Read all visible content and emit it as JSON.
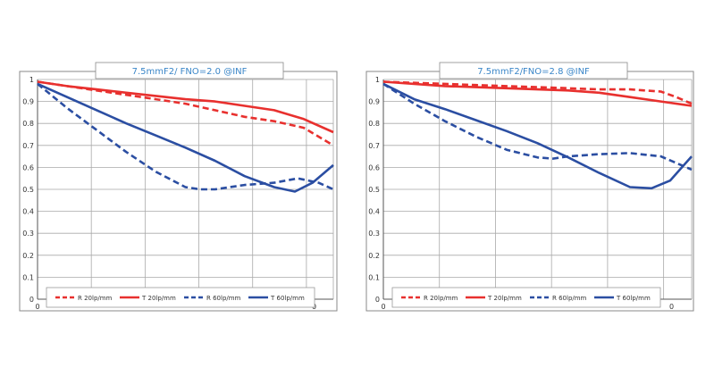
{
  "chart_data": [
    {
      "type": "line",
      "title": "7.5mmF2/ FNO=2.0  @INF",
      "xlabel": "",
      "ylabel": "",
      "ylim": [
        0,
        1
      ],
      "yticks": [
        "0",
        "0.1",
        "0.2",
        "0.3",
        "0.4",
        "0.5",
        "0.6",
        "0.7",
        "0.8",
        "0.9",
        "1"
      ],
      "xticks": [
        "0",
        "0"
      ],
      "grid": true,
      "legend_position": "bottom",
      "series": [
        {
          "name": "R 20lp/mm",
          "color": "#e8302e",
          "dash": true,
          "x": [
            0,
            0.1,
            0.2,
            0.3,
            0.4,
            0.5,
            0.6,
            0.7,
            0.8,
            0.9,
            1.0
          ],
          "y": [
            0.99,
            0.97,
            0.95,
            0.93,
            0.91,
            0.89,
            0.86,
            0.83,
            0.81,
            0.78,
            0.7
          ]
        },
        {
          "name": "T 20lp/mm",
          "color": "#e8302e",
          "dash": false,
          "x": [
            0,
            0.1,
            0.2,
            0.3,
            0.4,
            0.5,
            0.6,
            0.7,
            0.8,
            0.9,
            1.0
          ],
          "y": [
            0.99,
            0.97,
            0.955,
            0.94,
            0.925,
            0.91,
            0.9,
            0.88,
            0.86,
            0.82,
            0.76
          ]
        },
        {
          "name": "R 60lp/mm",
          "color": "#2b4ea2",
          "dash": true,
          "x": [
            0,
            0.1,
            0.2,
            0.3,
            0.4,
            0.5,
            0.55,
            0.6,
            0.7,
            0.8,
            0.88,
            0.95,
            1.0
          ],
          "y": [
            0.98,
            0.87,
            0.77,
            0.67,
            0.58,
            0.51,
            0.5,
            0.5,
            0.52,
            0.53,
            0.55,
            0.53,
            0.5
          ]
        },
        {
          "name": "T 60lp/mm",
          "color": "#2b4ea2",
          "dash": false,
          "x": [
            0,
            0.1,
            0.2,
            0.3,
            0.4,
            0.5,
            0.6,
            0.7,
            0.8,
            0.87,
            0.93,
            1.0
          ],
          "y": [
            0.98,
            0.92,
            0.86,
            0.8,
            0.745,
            0.69,
            0.63,
            0.56,
            0.51,
            0.49,
            0.53,
            0.61
          ]
        }
      ]
    },
    {
      "type": "line",
      "title": "7.5mmF2/FNO=2.8  @INF",
      "xlabel": "",
      "ylabel": "",
      "ylim": [
        0,
        1
      ],
      "yticks": [
        "0",
        "0.1",
        "0.2",
        "0.3",
        "0.4",
        "0.5",
        "0.6",
        "0.7",
        "0.8",
        "0.9",
        "1"
      ],
      "xticks": [
        "0",
        "0"
      ],
      "grid": true,
      "legend_position": "bottom",
      "series": [
        {
          "name": "R 20lp/mm",
          "color": "#e8302e",
          "dash": true,
          "x": [
            0,
            0.1,
            0.2,
            0.3,
            0.4,
            0.5,
            0.6,
            0.7,
            0.8,
            0.9,
            0.95,
            1.0
          ],
          "y": [
            0.99,
            0.985,
            0.98,
            0.975,
            0.97,
            0.965,
            0.96,
            0.955,
            0.955,
            0.945,
            0.92,
            0.89
          ]
        },
        {
          "name": "T 20lp/mm",
          "color": "#e8302e",
          "dash": false,
          "x": [
            0,
            0.1,
            0.2,
            0.3,
            0.4,
            0.5,
            0.6,
            0.7,
            0.8,
            0.9,
            1.0
          ],
          "y": [
            0.99,
            0.98,
            0.97,
            0.965,
            0.96,
            0.955,
            0.95,
            0.94,
            0.92,
            0.9,
            0.88
          ]
        },
        {
          "name": "R 60lp/mm",
          "color": "#2b4ea2",
          "dash": true,
          "x": [
            0,
            0.1,
            0.2,
            0.3,
            0.4,
            0.5,
            0.55,
            0.6,
            0.7,
            0.8,
            0.9,
            1.0
          ],
          "y": [
            0.98,
            0.89,
            0.81,
            0.74,
            0.68,
            0.645,
            0.64,
            0.65,
            0.66,
            0.665,
            0.65,
            0.59
          ]
        },
        {
          "name": "T 60lp/mm",
          "color": "#2b4ea2",
          "dash": false,
          "x": [
            0,
            0.1,
            0.2,
            0.3,
            0.4,
            0.5,
            0.6,
            0.7,
            0.8,
            0.87,
            0.93,
            1.0
          ],
          "y": [
            0.98,
            0.91,
            0.865,
            0.815,
            0.765,
            0.71,
            0.645,
            0.575,
            0.51,
            0.505,
            0.54,
            0.65
          ]
        }
      ]
    }
  ]
}
